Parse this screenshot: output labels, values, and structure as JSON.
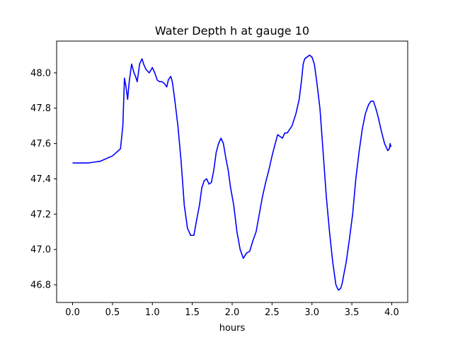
{
  "chart_data": {
    "type": "line",
    "title": "Water Depth h at gauge 10",
    "xlabel": "hours",
    "ylabel": "",
    "xlim": [
      -0.2,
      4.2
    ],
    "ylim": [
      46.7,
      48.18
    ],
    "x_ticks": [
      0.0,
      0.5,
      1.0,
      1.5,
      2.0,
      2.5,
      3.0,
      3.5,
      4.0
    ],
    "x_tick_labels": [
      "0.0",
      "0.5",
      "1.0",
      "1.5",
      "2.0",
      "2.5",
      "3.0",
      "3.5",
      "4.0"
    ],
    "y_ticks": [
      46.8,
      47.0,
      47.2,
      47.4,
      47.6,
      47.8,
      48.0
    ],
    "y_tick_labels": [
      "46.8",
      "47.0",
      "47.2",
      "47.4",
      "47.6",
      "47.8",
      "48.0"
    ],
    "grid": false,
    "legend": "none",
    "series": [
      {
        "color": "#0000ff",
        "x": [
          0.0,
          0.2,
          0.35,
          0.5,
          0.55,
          0.6,
          0.63,
          0.65,
          0.67,
          0.69,
          0.71,
          0.74,
          0.77,
          0.79,
          0.81,
          0.84,
          0.87,
          0.89,
          0.92,
          0.96,
          1.0,
          1.03,
          1.06,
          1.09,
          1.12,
          1.15,
          1.18,
          1.2,
          1.23,
          1.25,
          1.28,
          1.32,
          1.36,
          1.4,
          1.44,
          1.48,
          1.52,
          1.56,
          1.59,
          1.62,
          1.65,
          1.68,
          1.71,
          1.74,
          1.77,
          1.8,
          1.83,
          1.86,
          1.89,
          1.92,
          1.95,
          1.98,
          2.02,
          2.06,
          2.1,
          2.14,
          2.18,
          2.22,
          2.26,
          2.3,
          2.34,
          2.38,
          2.42,
          2.46,
          2.5,
          2.54,
          2.57,
          2.6,
          2.63,
          2.66,
          2.69,
          2.72,
          2.75,
          2.8,
          2.84,
          2.87,
          2.89,
          2.91,
          2.94,
          2.97,
          3.0,
          3.03,
          3.06,
          3.1,
          3.14,
          3.18,
          3.22,
          3.26,
          3.3,
          3.33,
          3.36,
          3.38,
          3.4,
          3.43,
          3.47,
          3.51,
          3.55,
          3.59,
          3.63,
          3.67,
          3.71,
          3.74,
          3.77,
          3.8,
          3.83,
          3.87,
          3.91,
          3.95,
          3.97,
          3.98,
          3.99
        ],
        "y": [
          47.49,
          47.49,
          47.5,
          47.53,
          47.55,
          47.57,
          47.7,
          47.97,
          47.92,
          47.85,
          47.95,
          48.05,
          48.0,
          47.98,
          47.95,
          48.05,
          48.08,
          48.05,
          48.02,
          48.0,
          48.03,
          48.0,
          47.96,
          47.95,
          47.95,
          47.94,
          47.92,
          47.96,
          47.98,
          47.95,
          47.85,
          47.7,
          47.5,
          47.25,
          47.12,
          47.08,
          47.08,
          47.18,
          47.25,
          47.35,
          47.39,
          47.4,
          47.37,
          47.38,
          47.45,
          47.55,
          47.6,
          47.63,
          47.6,
          47.52,
          47.45,
          47.35,
          47.25,
          47.1,
          47.0,
          46.95,
          46.98,
          46.99,
          47.05,
          47.1,
          47.2,
          47.3,
          47.38,
          47.45,
          47.53,
          47.6,
          47.65,
          47.64,
          47.63,
          47.66,
          47.66,
          47.68,
          47.7,
          47.77,
          47.85,
          47.96,
          48.05,
          48.08,
          48.09,
          48.1,
          48.09,
          48.05,
          47.95,
          47.8,
          47.55,
          47.3,
          47.1,
          46.93,
          46.8,
          46.77,
          46.78,
          46.81,
          46.86,
          46.93,
          47.06,
          47.2,
          47.4,
          47.55,
          47.68,
          47.77,
          47.82,
          47.84,
          47.84,
          47.8,
          47.75,
          47.67,
          47.6,
          47.56,
          47.57,
          47.6,
          47.58
        ]
      }
    ]
  }
}
